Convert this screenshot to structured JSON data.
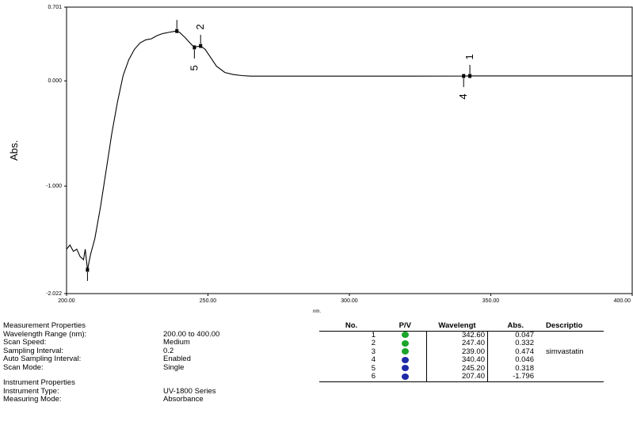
{
  "chart_data": {
    "type": "line",
    "ylabel": "Abs.",
    "xlabel": "nm.",
    "xlim": [
      200,
      400
    ],
    "ylim": [
      -2.022,
      0.701
    ],
    "x_ticks": [
      "200.00",
      "250.00",
      "300.00",
      "350.00",
      "400.00"
    ],
    "y_ticks": [
      "0.701",
      "0.000",
      "-1.000",
      "-2.022"
    ],
    "grid": false,
    "series": [
      {
        "x": [
          200.0,
          201.2,
          202.4,
          203.6,
          204.8,
          206.0,
          206.6,
          207.4,
          208.5,
          210.0,
          212.0,
          214.0,
          216.0,
          218.0,
          220.0,
          222.0,
          224.0,
          226.0,
          228.0,
          230.0,
          232.0,
          234.0,
          236.0,
          238.0,
          239.0,
          240.0,
          242.0,
          244.0,
          245.2,
          246.0,
          247.4,
          249.0,
          251.0,
          253.0,
          256.0,
          259.0,
          262.0,
          265.0,
          270.0,
          280.0,
          300.0,
          320.0,
          340.4,
          342.6,
          360.0,
          380.0,
          400.0
        ],
        "y": [
          -1.6,
          -1.56,
          -1.62,
          -1.6,
          -1.67,
          -1.7,
          -1.6,
          -1.796,
          -1.65,
          -1.5,
          -1.2,
          -0.85,
          -0.5,
          -0.2,
          0.05,
          0.2,
          0.3,
          0.36,
          0.39,
          0.4,
          0.43,
          0.45,
          0.46,
          0.47,
          0.474,
          0.46,
          0.41,
          0.35,
          0.318,
          0.325,
          0.332,
          0.3,
          0.22,
          0.14,
          0.08,
          0.06,
          0.05,
          0.045,
          0.045,
          0.045,
          0.045,
          0.045,
          0.046,
          0.047,
          0.047,
          0.047,
          0.047
        ]
      }
    ],
    "peak_markers": [
      {
        "label": "1",
        "x": 342.6,
        "y": 0.047,
        "type": "peak"
      },
      {
        "label": "2",
        "x": 247.4,
        "y": 0.332,
        "type": "peak"
      },
      {
        "label": "3",
        "x": 239.0,
        "y": 0.474,
        "type": "peak"
      },
      {
        "label": "4",
        "x": 340.4,
        "y": 0.046,
        "type": "valley"
      },
      {
        "label": "5",
        "x": 245.2,
        "y": 0.318,
        "type": "valley"
      },
      {
        "label": "6",
        "x": 207.4,
        "y": -1.796,
        "type": "valley"
      }
    ],
    "peak_table": {
      "headers": [
        "No.",
        "P/V",
        "Wavelengt",
        "Abs.",
        "Descriptio"
      ],
      "rows": [
        {
          "no": "1",
          "pv": "peak",
          "wavelength": "342.60",
          "abs": "0.047",
          "description": ""
        },
        {
          "no": "2",
          "pv": "peak",
          "wavelength": "247.40",
          "abs": "0.332",
          "description": ""
        },
        {
          "no": "3",
          "pv": "peak",
          "wavelength": "239.00",
          "abs": "0.474",
          "description": "simvastatin"
        },
        {
          "no": "4",
          "pv": "valley",
          "wavelength": "340.40",
          "abs": "0.046",
          "description": ""
        },
        {
          "no": "5",
          "pv": "valley",
          "wavelength": "245.20",
          "abs": "0.318",
          "description": ""
        },
        {
          "no": "6",
          "pv": "valley",
          "wavelength": "207.40",
          "abs": "-1.796",
          "description": ""
        }
      ]
    }
  },
  "measurement": {
    "title": "Measurement Properties",
    "rows": [
      {
        "label": "Wavelength Range (nm):",
        "value": "200.00 to 400.00"
      },
      {
        "label": "Scan Speed:",
        "value": "Medium"
      },
      {
        "label": "Sampling Interval:",
        "value": "0.2"
      },
      {
        "label": "Auto Sampling Interval:",
        "value": "Enabled"
      },
      {
        "label": "Scan Mode:",
        "value": "Single"
      }
    ]
  },
  "instrument": {
    "title": "Instrument Properties",
    "rows": [
      {
        "label": "Instrument Type:",
        "value": "UV-1800 Series"
      },
      {
        "label": "Measuring Mode:",
        "value": "Absorbance"
      }
    ]
  },
  "colors": {
    "peak": "#1aa52a",
    "valley": "#1e2aa8",
    "line": "#000000"
  }
}
